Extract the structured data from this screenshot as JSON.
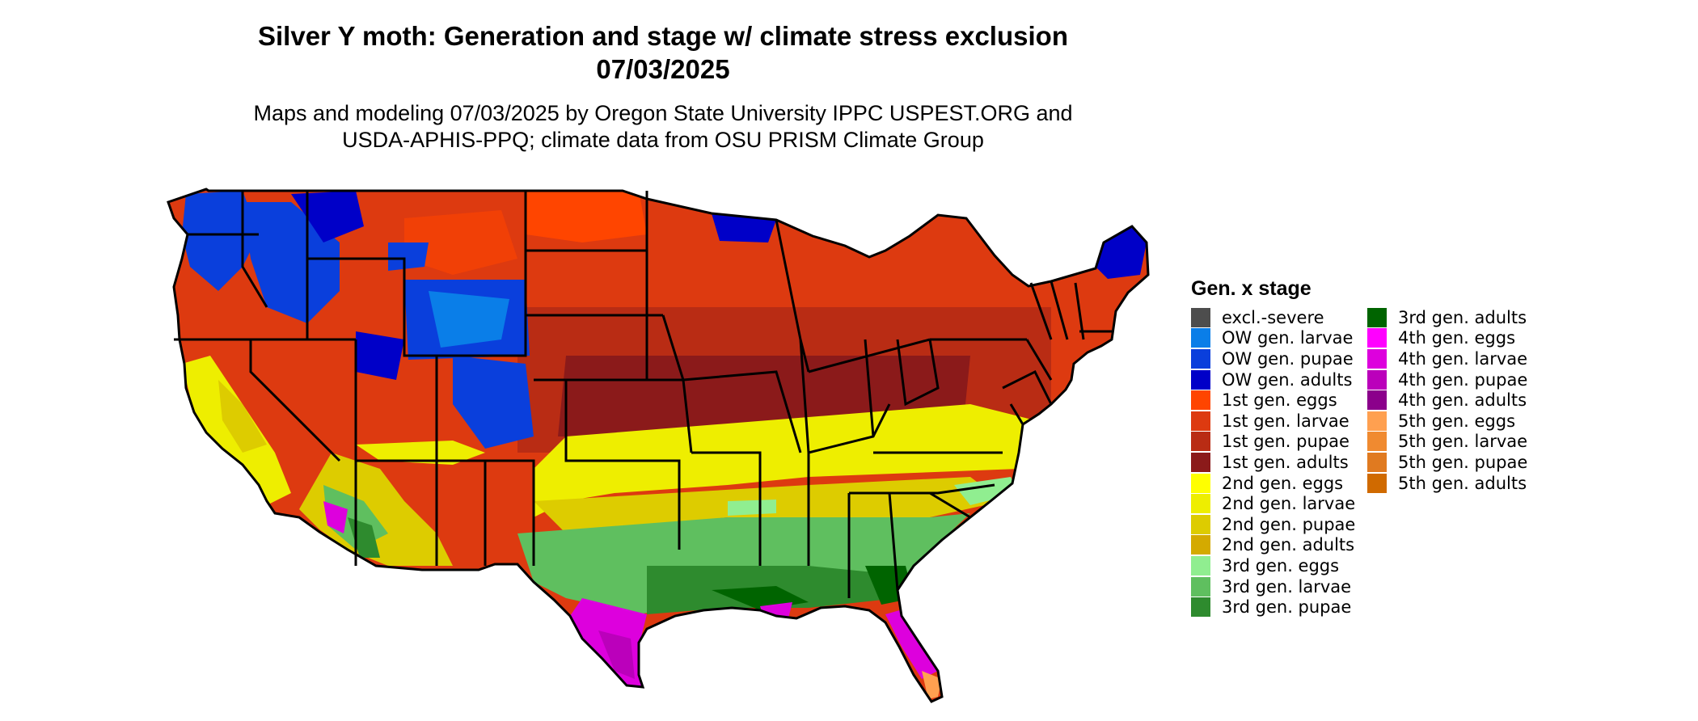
{
  "title_line1": "Silver Y moth: Generation and stage w/ climate stress exclusion",
  "title_line2": "07/03/2025",
  "subtitle_line1": "Maps and modeling 07/03/2025 by Oregon State University IPPC USPEST.ORG and",
  "subtitle_line2": "USDA-APHIS-PPQ; climate data from OSU PRISM Climate Group",
  "legend": {
    "title": "Gen. x stage",
    "items": [
      {
        "label": "excl.-severe",
        "color": "#4d4d4d"
      },
      {
        "label": "OW gen. larvae",
        "color": "#0a7ee8"
      },
      {
        "label": "OW gen. pupae",
        "color": "#0a3fdc"
      },
      {
        "label": "OW gen. adults",
        "color": "#0000c8"
      },
      {
        "label": "1st gen. eggs",
        "color": "#ff4500"
      },
      {
        "label": "1st gen. larvae",
        "color": "#dd3a10"
      },
      {
        "label": "1st gen. pupae",
        "color": "#b92c14"
      },
      {
        "label": "1st gen. adults",
        "color": "#8b1a1a"
      },
      {
        "label": "2nd gen. eggs",
        "color": "#ffff00"
      },
      {
        "label": "2nd gen. larvae",
        "color": "#eeee00"
      },
      {
        "label": "2nd gen. pupae",
        "color": "#ddcc00"
      },
      {
        "label": "2nd gen. adults",
        "color": "#d4aa00"
      },
      {
        "label": "3rd gen. eggs",
        "color": "#90ee90"
      },
      {
        "label": "3rd gen. larvae",
        "color": "#5fbf5f"
      },
      {
        "label": "3rd gen. pupae",
        "color": "#2e8b2e"
      },
      {
        "label": "3rd gen. adults",
        "color": "#006400"
      },
      {
        "label": "4th gen. eggs",
        "color": "#ff00ff"
      },
      {
        "label": "4th gen. larvae",
        "color": "#dd00dd"
      },
      {
        "label": "4th gen. pupae",
        "color": "#bb00bb"
      },
      {
        "label": "4th gen. adults",
        "color": "#8b008b"
      },
      {
        "label": "5th gen. eggs",
        "color": "#ffa050"
      },
      {
        "label": "5th gen. larvae",
        "color": "#f08a30"
      },
      {
        "label": "5th gen. pupae",
        "color": "#e07a20"
      },
      {
        "label": "5th gen. adults",
        "color": "#d06a00"
      }
    ]
  }
}
